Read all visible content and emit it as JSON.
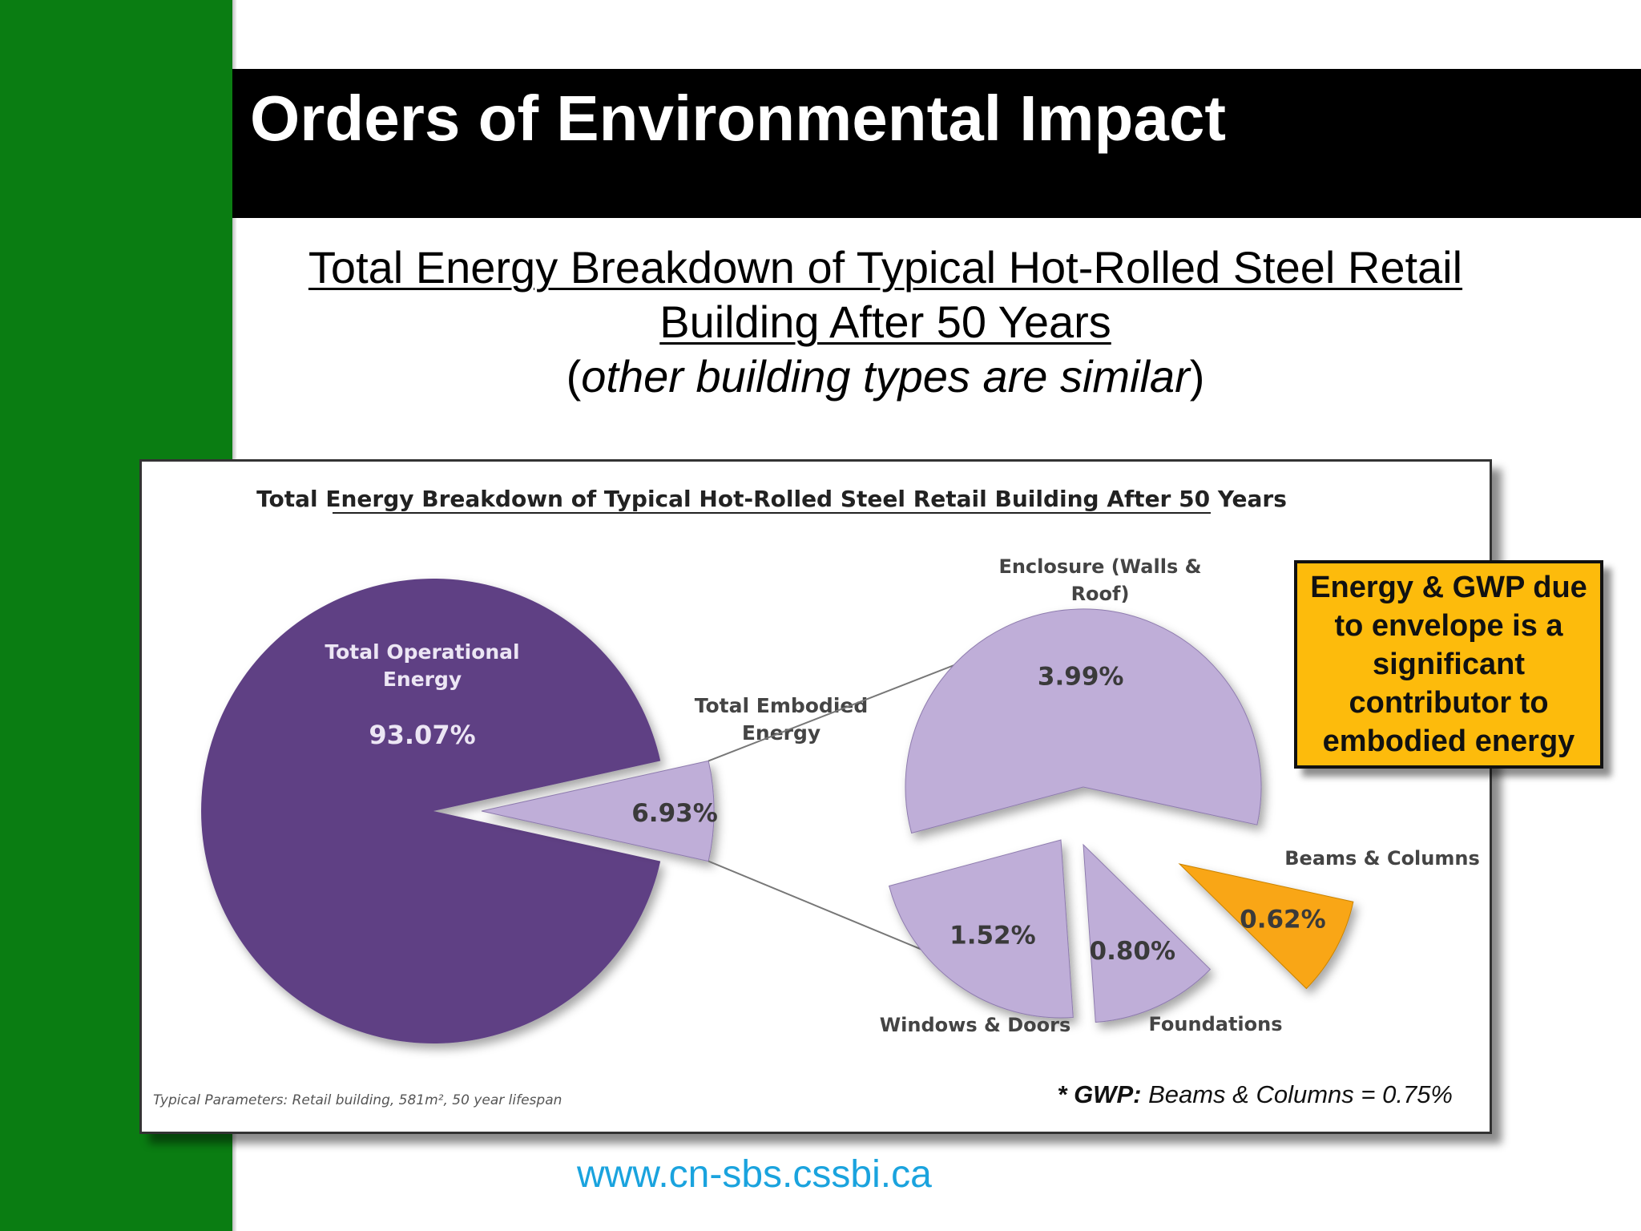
{
  "slide": {
    "title": "Orders of Environmental Impact",
    "subtitle_line1": "Total Energy Breakdown of Typical Hot-Rolled Steel Retail",
    "subtitle_line2": "Building After 50 Years",
    "subtitle_note": "other building types are similar",
    "callout": "Energy & GWP due to envelope is a significant contributor to embodied energy",
    "footer_url": "www.cn-sbs.cssbi.ca",
    "colors": {
      "sidebar": "#0a7d12",
      "title_bar": "#000000",
      "callout": "#fdbb0c",
      "url": "#1aa3de"
    }
  },
  "chart_data": {
    "type": "pie",
    "title": "Total Energy Breakdown of Typical Hot-Rolled Steel Retail Building After 50 Years",
    "main_pie": {
      "slices": [
        {
          "label": "Total Operational Energy",
          "value": 93.07,
          "value_label": "93.07%",
          "color": "#5e3f84"
        },
        {
          "label": "Total Embodied Energy",
          "value": 6.93,
          "value_label": "6.93%",
          "color": "#bfaed8"
        }
      ]
    },
    "breakdown_pie": {
      "parent": "Total Embodied Energy",
      "slices": [
        {
          "label": "Enclosure (Walls & Roof)",
          "value": 3.99,
          "value_label": "3.99%",
          "color": "#bfaed8"
        },
        {
          "label": "Beams & Columns",
          "value": 0.62,
          "value_label": "0.62%",
          "color": "#f9a612"
        },
        {
          "label": "Foundations",
          "value": 0.8,
          "value_label": "0.80%",
          "color": "#bfaed8"
        },
        {
          "label": "Windows & Doors",
          "value": 1.52,
          "value_label": "1.52%",
          "color": "#bfaed8"
        }
      ]
    },
    "footnote_left": "Typical Parameters: Retail building, 581m², 50 year lifespan",
    "gwp_note_key": "* GWP:",
    "gwp_note_value": "Beams & Columns = 0.75%"
  }
}
